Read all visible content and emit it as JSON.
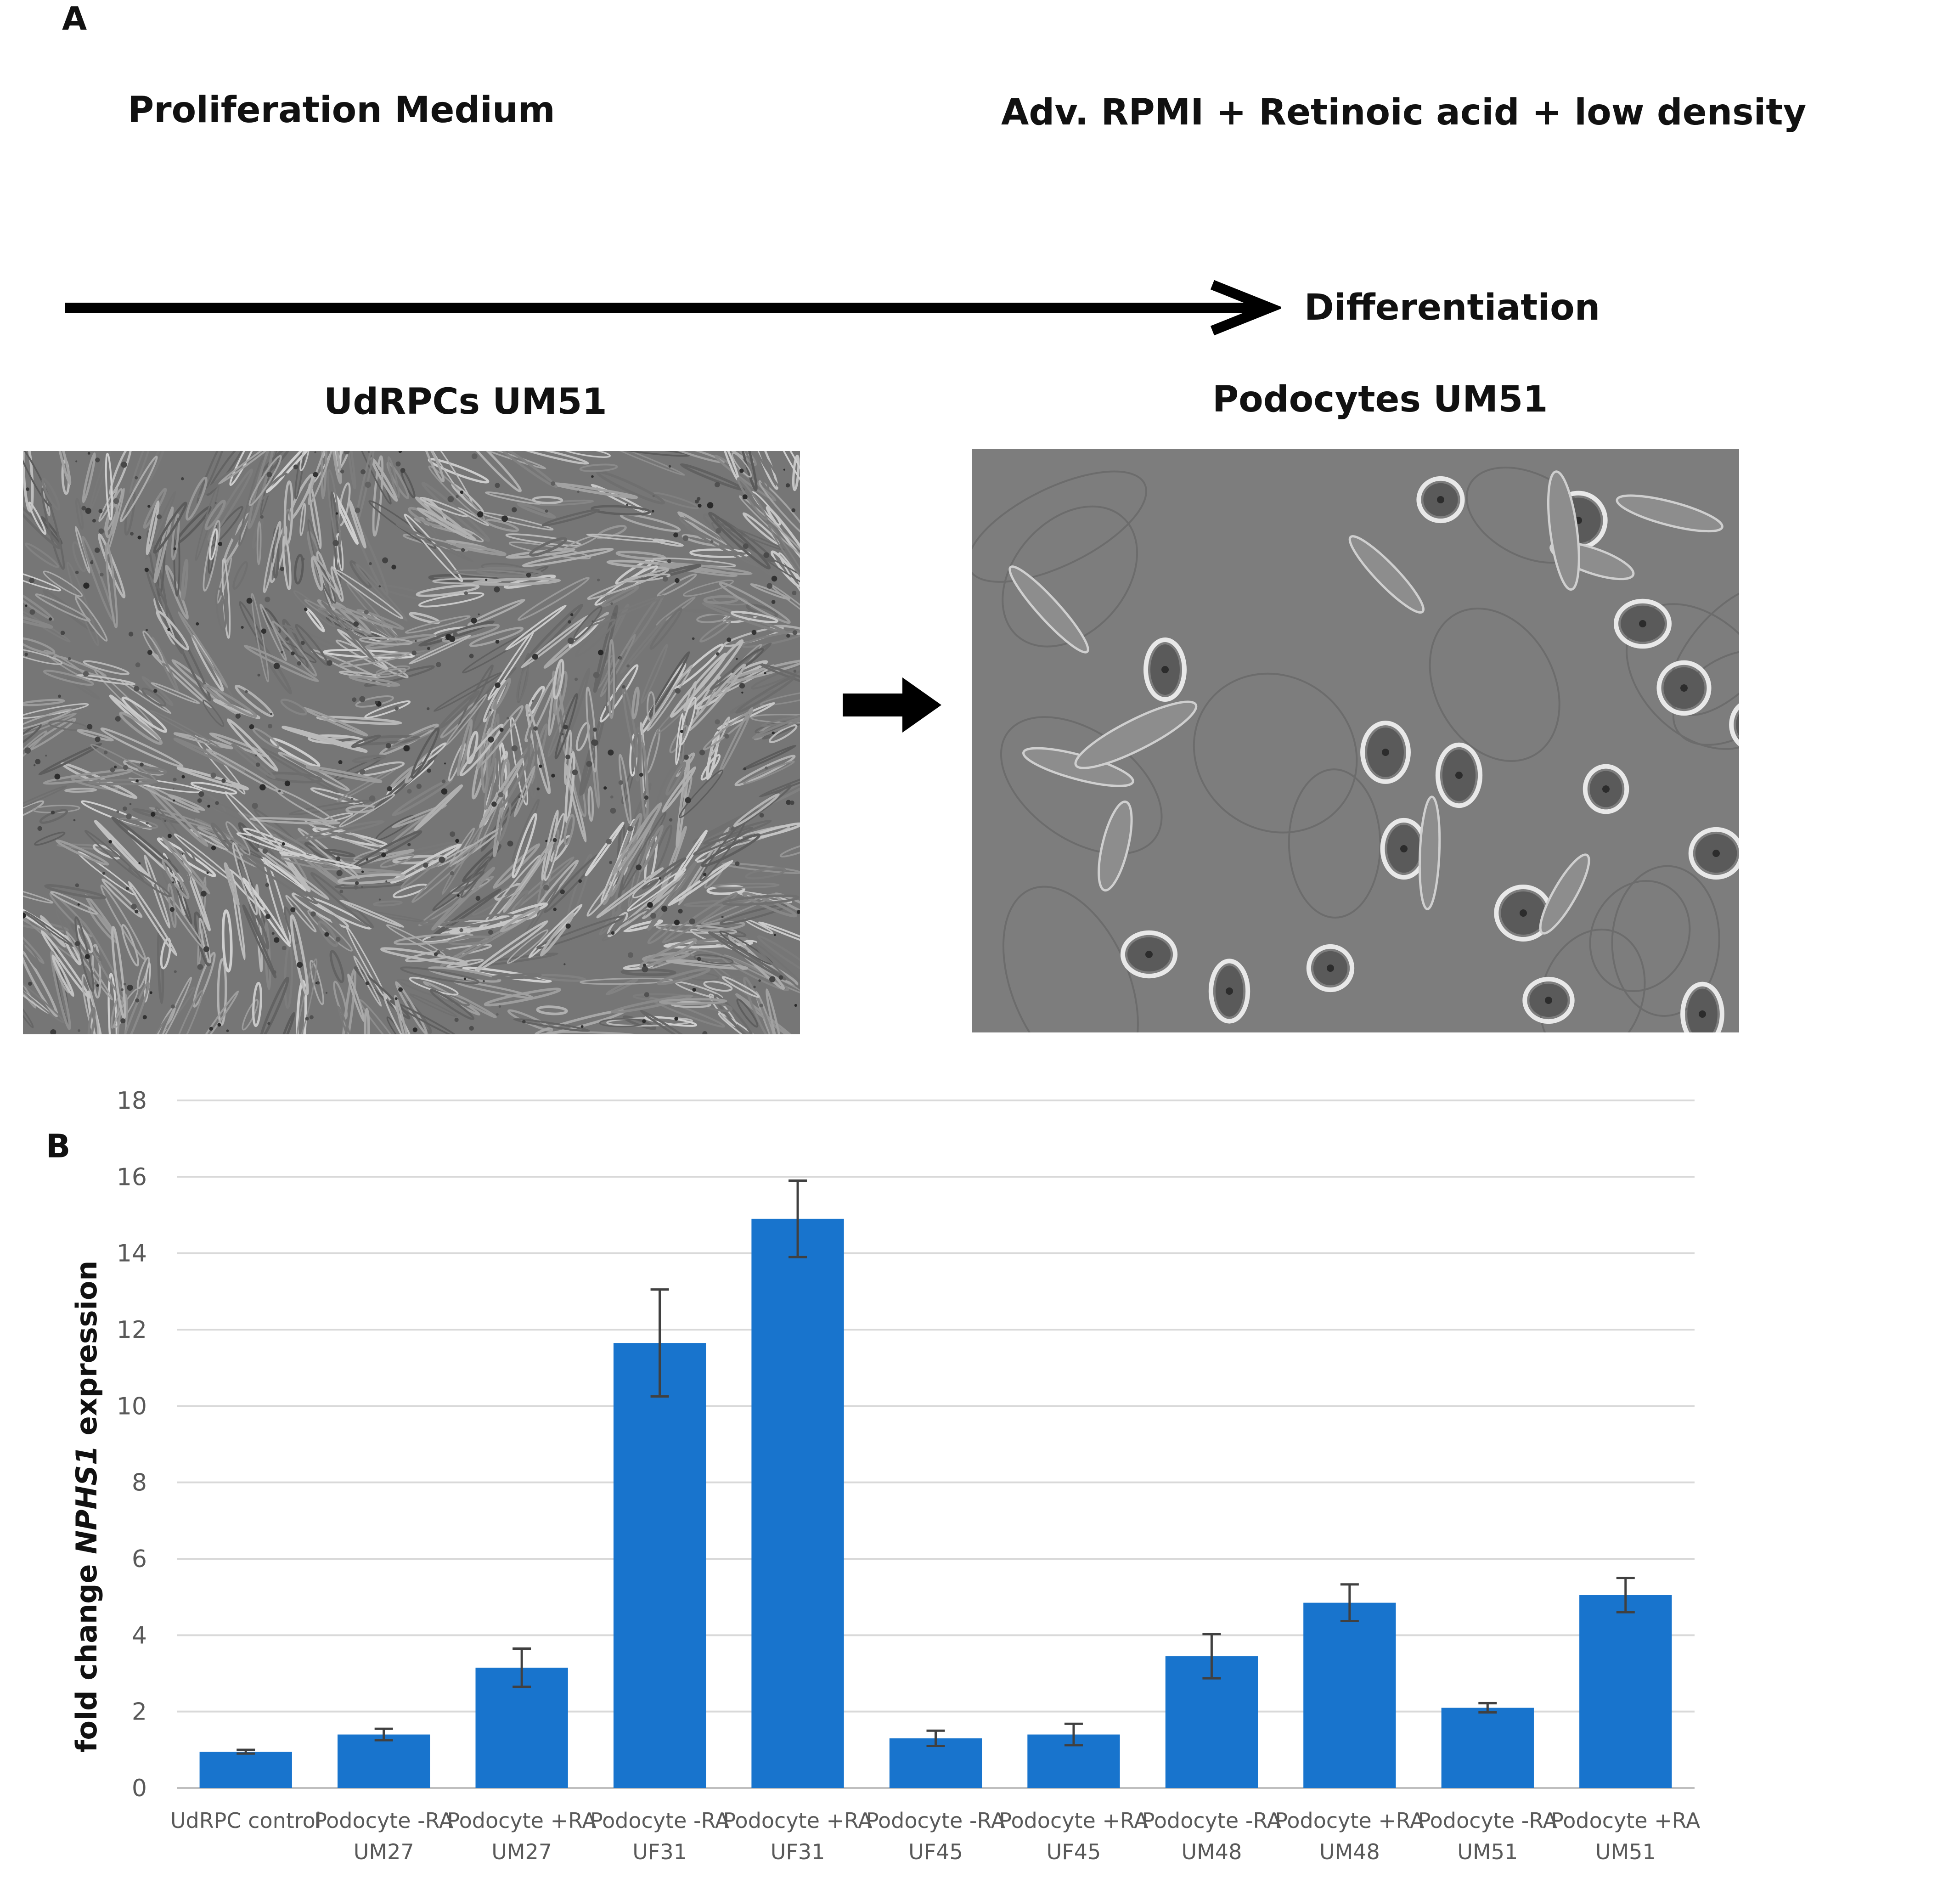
{
  "panel_a": {
    "letter": "A",
    "left_condition": "Proliferation Medium",
    "right_condition": "Adv. RPMI + Retinoic acid + low density",
    "arrow_label": "Differentiation",
    "left_image_title": "UdRPCs UM51",
    "right_image_title": "Podocytes UM51"
  },
  "panel_b": {
    "letter": "B"
  },
  "chart_data": {
    "type": "bar",
    "ylabel_prefix": "fold change ",
    "ylabel_gene": "NPHS1",
    "ylabel_suffix": " expression",
    "ylim": [
      0,
      18
    ],
    "yticks": [
      0,
      2,
      4,
      6,
      8,
      10,
      12,
      14,
      16,
      18
    ],
    "grid": true,
    "bar_color": "#1874cd",
    "categories": [
      [
        "UdRPC control"
      ],
      [
        "Podocyte -RA",
        "UM27"
      ],
      [
        "Podocyte +RA",
        "UM27"
      ],
      [
        "Podocyte -RA",
        "UF31"
      ],
      [
        "Podocyte +RA",
        "UF31"
      ],
      [
        "Podocyte -RA",
        "UF45"
      ],
      [
        "Podocyte +RA",
        "UF45"
      ],
      [
        "Podocyte -RA",
        "UM48"
      ],
      [
        "Podocyte +RA",
        "UM48"
      ],
      [
        "Podocyte -RA",
        "UM51"
      ],
      [
        "Podocyte +RA",
        "UM51"
      ]
    ],
    "values": [
      0.95,
      1.4,
      3.15,
      11.65,
      14.9,
      1.3,
      1.4,
      3.45,
      4.85,
      2.1,
      5.05
    ],
    "errors": [
      0.05,
      0.15,
      0.5,
      1.4,
      1.0,
      0.2,
      0.28,
      0.58,
      0.48,
      0.12,
      0.45
    ]
  }
}
